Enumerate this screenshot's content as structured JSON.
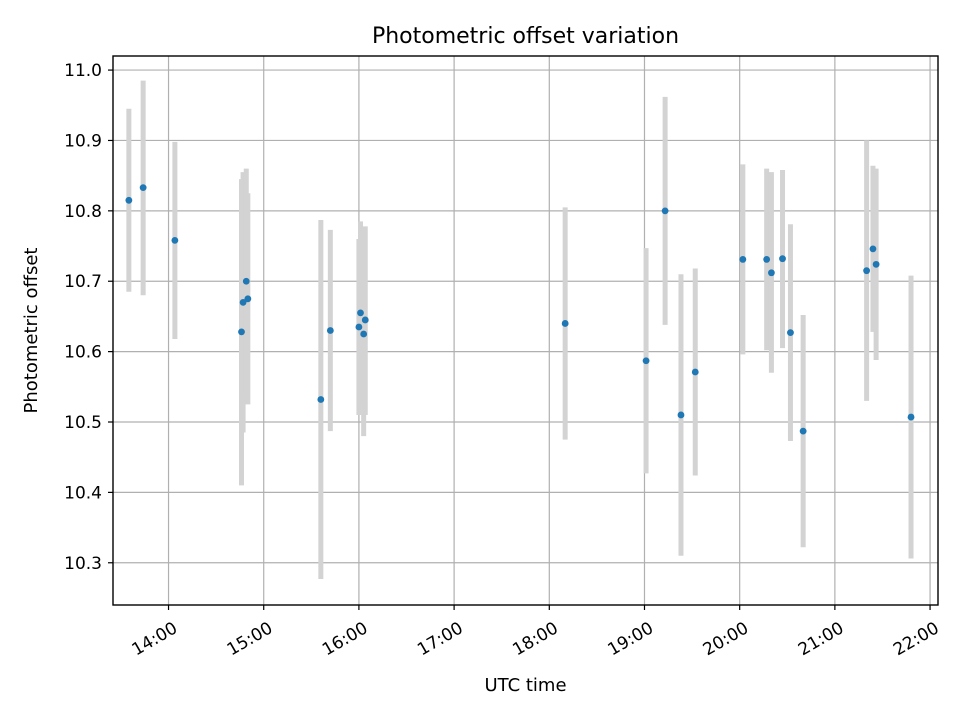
{
  "chart_data": {
    "type": "scatter",
    "title": "Photometric offset variation",
    "xlabel": "UTC time",
    "ylabel": "Photometric offset",
    "xlim": [
      "13:25",
      "22:05"
    ],
    "ylim": [
      10.24,
      11.02
    ],
    "xticks": [
      "14:00",
      "15:00",
      "16:00",
      "17:00",
      "18:00",
      "19:00",
      "20:00",
      "21:00",
      "22:00"
    ],
    "yticks": [
      "10.3",
      "10.4",
      "10.5",
      "10.6",
      "10.7",
      "10.8",
      "10.9",
      "11.0"
    ],
    "grid": true,
    "colors": {
      "marker": "#1f77b4",
      "errorbar": "#d3d3d3",
      "grid": "#b0b0b0"
    },
    "points": [
      {
        "x": "13:35",
        "y": 10.815,
        "ylow": 10.685,
        "yhigh": 10.945
      },
      {
        "x": "13:44",
        "y": 10.833,
        "ylow": 10.68,
        "yhigh": 10.985
      },
      {
        "x": "14:04",
        "y": 10.758,
        "ylow": 10.618,
        "yhigh": 10.898
      },
      {
        "x": "14:46",
        "y": 10.628,
        "ylow": 10.41,
        "yhigh": 10.845
      },
      {
        "x": "14:47",
        "y": 10.67,
        "ylow": 10.485,
        "yhigh": 10.855
      },
      {
        "x": "14:49",
        "y": 10.7,
        "ylow": 10.54,
        "yhigh": 10.86
      },
      {
        "x": "14:50",
        "y": 10.675,
        "ylow": 10.525,
        "yhigh": 10.825
      },
      {
        "x": "15:36",
        "y": 10.532,
        "ylow": 10.277,
        "yhigh": 10.787
      },
      {
        "x": "15:42",
        "y": 10.63,
        "ylow": 10.487,
        "yhigh": 10.773
      },
      {
        "x": "16:00",
        "y": 10.635,
        "ylow": 10.51,
        "yhigh": 10.76
      },
      {
        "x": "16:01",
        "y": 10.655,
        "ylow": 10.525,
        "yhigh": 10.785
      },
      {
        "x": "16:03",
        "y": 10.625,
        "ylow": 10.48,
        "yhigh": 10.77
      },
      {
        "x": "16:04",
        "y": 10.645,
        "ylow": 10.51,
        "yhigh": 10.778
      },
      {
        "x": "18:10",
        "y": 10.64,
        "ylow": 10.475,
        "yhigh": 10.805
      },
      {
        "x": "19:01",
        "y": 10.587,
        "ylow": 10.427,
        "yhigh": 10.747
      },
      {
        "x": "19:13",
        "y": 10.8,
        "ylow": 10.638,
        "yhigh": 10.962
      },
      {
        "x": "19:23",
        "y": 10.51,
        "ylow": 10.31,
        "yhigh": 10.71
      },
      {
        "x": "19:32",
        "y": 10.571,
        "ylow": 10.424,
        "yhigh": 10.718
      },
      {
        "x": "20:02",
        "y": 10.731,
        "ylow": 10.596,
        "yhigh": 10.866
      },
      {
        "x": "20:17",
        "y": 10.731,
        "ylow": 10.602,
        "yhigh": 10.86
      },
      {
        "x": "20:20",
        "y": 10.712,
        "ylow": 10.57,
        "yhigh": 10.855
      },
      {
        "x": "20:27",
        "y": 10.732,
        "ylow": 10.605,
        "yhigh": 10.858
      },
      {
        "x": "20:32",
        "y": 10.627,
        "ylow": 10.473,
        "yhigh": 10.781
      },
      {
        "x": "20:40",
        "y": 10.487,
        "ylow": 10.322,
        "yhigh": 10.652
      },
      {
        "x": "21:20",
        "y": 10.715,
        "ylow": 10.53,
        "yhigh": 10.9
      },
      {
        "x": "21:24",
        "y": 10.746,
        "ylow": 10.628,
        "yhigh": 10.864
      },
      {
        "x": "21:26",
        "y": 10.724,
        "ylow": 10.588,
        "yhigh": 10.86
      },
      {
        "x": "21:48",
        "y": 10.507,
        "ylow": 10.306,
        "yhigh": 10.708
      }
    ]
  }
}
